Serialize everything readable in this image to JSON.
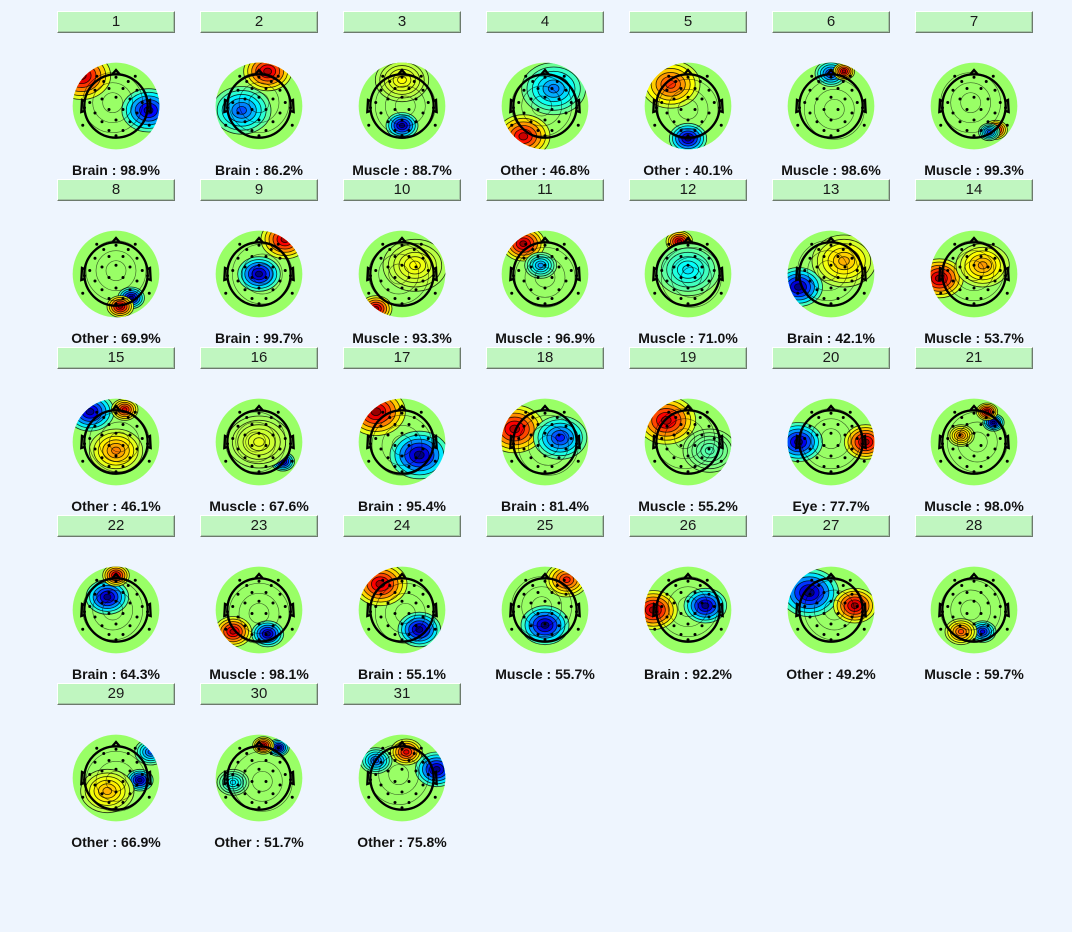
{
  "components": [
    {
      "number": "1",
      "label": "Brain : 98.9%"
    },
    {
      "number": "2",
      "label": "Brain : 86.2%"
    },
    {
      "number": "3",
      "label": "Muscle : 88.7%"
    },
    {
      "number": "4",
      "label": "Other : 46.8%"
    },
    {
      "number": "5",
      "label": "Other : 40.1%"
    },
    {
      "number": "6",
      "label": "Muscle : 98.6%"
    },
    {
      "number": "7",
      "label": "Muscle : 99.3%"
    },
    {
      "number": "8",
      "label": "Other : 69.9%"
    },
    {
      "number": "9",
      "label": "Brain : 99.7%"
    },
    {
      "number": "10",
      "label": "Muscle : 93.3%"
    },
    {
      "number": "11",
      "label": "Muscle : 96.9%"
    },
    {
      "number": "12",
      "label": "Muscle : 71.0%"
    },
    {
      "number": "13",
      "label": "Brain : 42.1%"
    },
    {
      "number": "14",
      "label": "Muscle : 53.7%"
    },
    {
      "number": "15",
      "label": "Other : 46.1%"
    },
    {
      "number": "16",
      "label": "Muscle : 67.6%"
    },
    {
      "number": "17",
      "label": "Brain : 95.4%"
    },
    {
      "number": "18",
      "label": "Brain : 81.4%"
    },
    {
      "number": "19",
      "label": "Muscle : 55.2%"
    },
    {
      "number": "20",
      "label": "Eye : 77.7%"
    },
    {
      "number": "21",
      "label": "Muscle : 98.0%"
    },
    {
      "number": "22",
      "label": "Brain : 64.3%"
    },
    {
      "number": "23",
      "label": "Muscle : 98.1%"
    },
    {
      "number": "24",
      "label": "Brain : 55.1%"
    },
    {
      "number": "25",
      "label": "Muscle : 55.7%"
    },
    {
      "number": "26",
      "label": "Brain : 92.2%"
    },
    {
      "number": "27",
      "label": "Other : 49.2%"
    },
    {
      "number": "28",
      "label": "Muscle : 59.7%"
    },
    {
      "number": "29",
      "label": "Other : 66.9%"
    },
    {
      "number": "30",
      "label": "Other : 51.7%"
    },
    {
      "number": "31",
      "label": "Other : 75.8%"
    }
  ]
}
